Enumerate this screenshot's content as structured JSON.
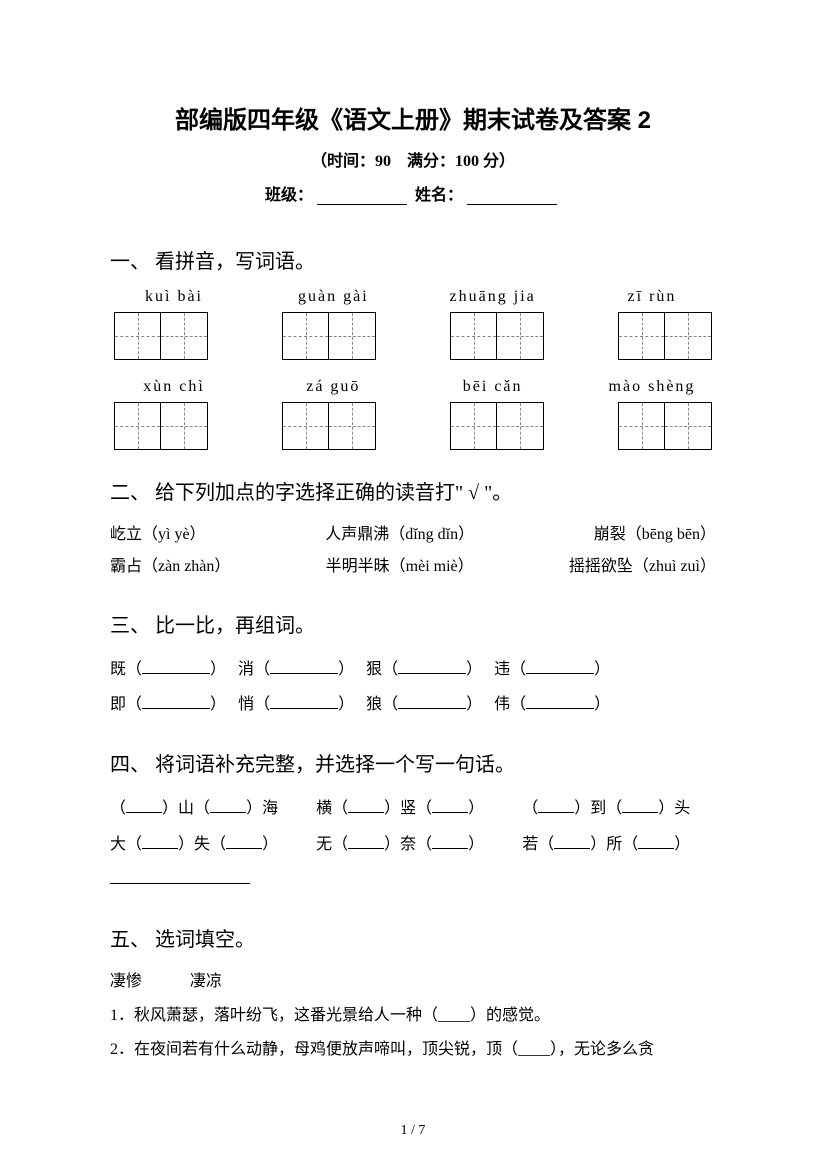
{
  "title": "部编版四年级《语文上册》期末试卷及答案 2",
  "subtitle": "（时间：90　满分：100 分）",
  "meta": {
    "class_label": "班级：",
    "name_label": "姓名："
  },
  "section1": {
    "heading": "一、 看拼音，写词语。",
    "row1": [
      "kuì  bài",
      "guàn gài",
      "zhuāng jia",
      "zī   rùn"
    ],
    "row2": [
      "xùn  chì",
      "zá guō",
      "bēi cǎn",
      "mào shèng"
    ]
  },
  "section2": {
    "heading": "二、 给下列加点的字选择正确的读音打\" √ \"。",
    "items": [
      {
        "pre": "屹",
        "dot": "屹",
        "post": "立（yì  yè）"
      },
      {
        "pre": "人声鼎",
        "dot": "鼎",
        "post": "沸（dǐng  dǐn）"
      },
      {
        "pre": "崩",
        "dot": "崩",
        "post": "裂（bēng  bēn）"
      },
      {
        "pre": "霸占",
        "dot": "占",
        "post": "（zàn zhàn）"
      },
      {
        "pre": "半明半昧",
        "dot": "昧",
        "post": "（mèi  miè）"
      },
      {
        "pre": "摇摇欲坠",
        "dot": "坠",
        "post": "（zhuì zuì）"
      }
    ],
    "line1": {
      "a": "屹立（yì  yè）",
      "b": "人声鼎沸（dǐng  dǐn）",
      "c": "崩裂（bēng  bēn）"
    },
    "line2": {
      "a": "霸占（zàn zhàn）",
      "b": "半明半昧（mèi  miè）",
      "c": "摇摇欲坠（zhuì zuì）"
    }
  },
  "section3": {
    "heading": "三、 比一比，再组词。",
    "line1_chars": [
      "既",
      "消",
      "狠",
      "违"
    ],
    "line2_chars": [
      "即",
      "悄",
      "狼",
      "伟"
    ]
  },
  "section4": {
    "heading": "四、 将词语补充完整，并选择一个写一句话。",
    "row1": [
      {
        "l": "",
        "m": "山",
        "r": "海"
      },
      {
        "l": "横",
        "m": "",
        "r": "竖"
      },
      {
        "l": "",
        "m": "到",
        "r": "头"
      }
    ],
    "row2": [
      {
        "l": "大",
        "m": "",
        "r": "失"
      },
      {
        "l": "无",
        "m": "",
        "r": "奈"
      },
      {
        "l": "若",
        "m": "",
        "r": "所"
      }
    ]
  },
  "section5": {
    "heading": "五、 选词填空。",
    "options": "凄惨　　　凄凉",
    "q1": "1．秋风萧瑟，落叶纷飞，这番光景给人一种（____）的感觉。",
    "q2": "2．在夜间若有什么动静，母鸡便放声啼叫，顶尖锐，顶（____），无论多么贪"
  },
  "page_num": "1 / 7"
}
